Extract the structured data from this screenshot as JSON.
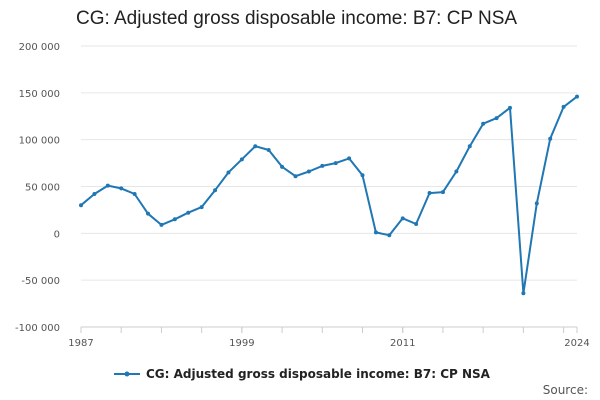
{
  "chart_data": {
    "type": "line",
    "title": "CG: Adjusted gross disposable income: B7: CP NSA",
    "xlabel": "",
    "ylabel": "",
    "xlim": [
      1987,
      2024
    ],
    "ylim": [
      -100000,
      200000
    ],
    "y_ticks": [
      200000,
      150000,
      100000,
      50000,
      0,
      -50000,
      -100000
    ],
    "y_tick_labels": [
      "200 000",
      "150 000",
      "100 000",
      "50 000",
      "0",
      "-50 000",
      "-100 000"
    ],
    "x_tick_labels": [
      "1987",
      "1999",
      "2011",
      "2024"
    ],
    "x_tick_label_values": [
      1987,
      1999,
      2011,
      2024
    ],
    "x_minor_ticks": [
      1990,
      1993,
      1996,
      1999,
      2002,
      2005,
      2008,
      2011,
      2014,
      2017,
      2020,
      2023
    ],
    "grid": true,
    "legend_position": "bottom",
    "series": [
      {
        "name": "CG: Adjusted gross disposable income: B7: CP NSA",
        "color": "#1f77b4",
        "x": [
          1987,
          1988,
          1989,
          1990,
          1991,
          1992,
          1993,
          1994,
          1995,
          1996,
          1997,
          1998,
          1999,
          2000,
          2001,
          2002,
          2003,
          2004,
          2005,
          2006,
          2007,
          2008,
          2009,
          2010,
          2011,
          2012,
          2013,
          2014,
          2015,
          2016,
          2017,
          2018,
          2019,
          2020,
          2021,
          2022,
          2023,
          2024
        ],
        "values": [
          30000,
          42000,
          51000,
          48000,
          42000,
          21000,
          9000,
          15000,
          22000,
          28000,
          46000,
          65000,
          79000,
          93000,
          89000,
          71000,
          61000,
          66000,
          72000,
          75000,
          80000,
          62000,
          1000,
          -2000,
          16000,
          10000,
          43000,
          44000,
          66000,
          93000,
          117000,
          123000,
          134000,
          -64000,
          32000,
          101000,
          135000,
          146000
        ]
      }
    ],
    "source_label": "Source:"
  }
}
